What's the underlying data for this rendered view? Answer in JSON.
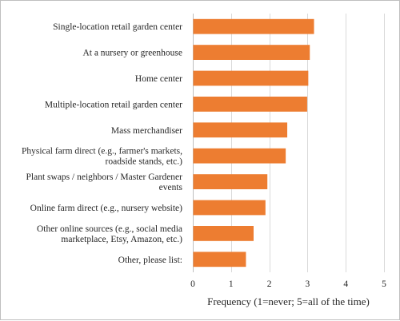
{
  "chart_data": {
    "type": "bar",
    "orientation": "horizontal",
    "categories": [
      [
        "Single-location retail garden center"
      ],
      [
        "At a nursery or greenhouse"
      ],
      [
        "Home center"
      ],
      [
        "Multiple-location retail garden center"
      ],
      [
        "Mass merchandiser"
      ],
      [
        "Physical farm direct (e.g., farmer's markets,",
        "roadside stands, etc.)"
      ],
      [
        "Plant swaps / neighbors / Master Gardener",
        "events"
      ],
      [
        "Online farm direct (e.g., nursery website)"
      ],
      [
        "Other online sources (e.g., social media",
        "marketplace, Etsy, Amazon, etc.)"
      ],
      [
        "Other, please list:"
      ]
    ],
    "values": [
      3.17,
      3.06,
      3.02,
      2.99,
      2.47,
      2.43,
      1.95,
      1.9,
      1.59,
      1.39
    ],
    "xlabel": "Frequency (1=never; 5=all of the time)",
    "ylabel": "",
    "title": "",
    "xlim": [
      0,
      5
    ],
    "xticks": [
      0,
      1,
      2,
      3,
      4,
      5
    ],
    "grid": true,
    "bar_color": "#ED7D31",
    "grid_color": "#D9D9D9"
  }
}
